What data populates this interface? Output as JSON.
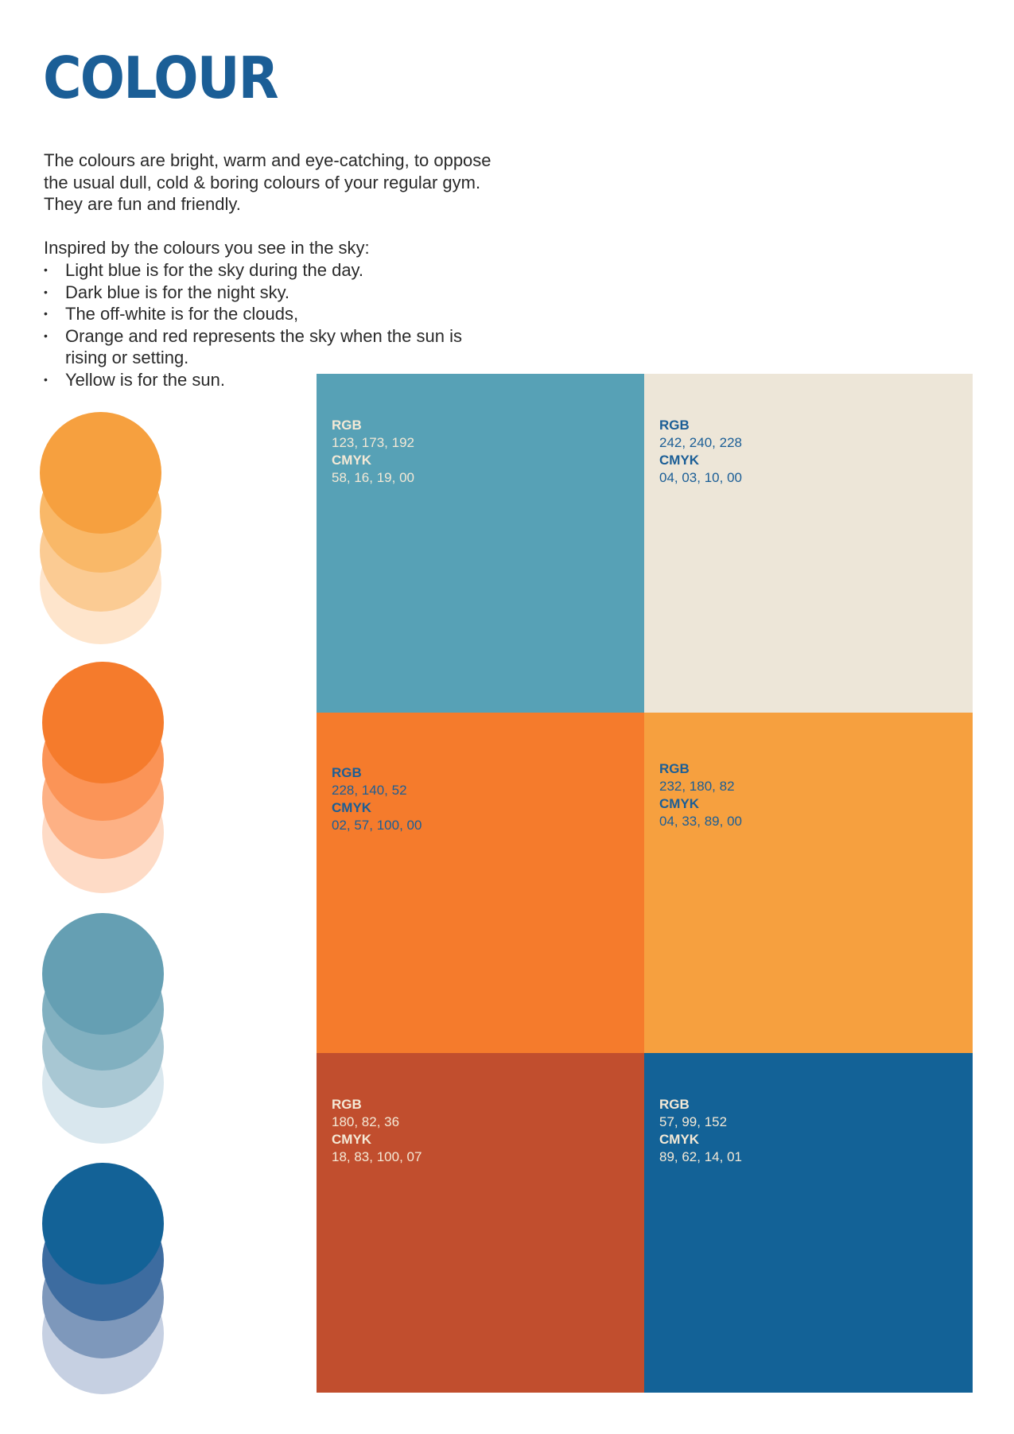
{
  "title": "COLOUR",
  "intro": "The colours are bright, warm and eye-catching, to oppose the usual dull, cold & boring colours of your regular gym. They are fun and friendly.",
  "inspired": "Inspired by the colours you see in the sky:",
  "bullets": [
    "Light blue is for the sky during the day.",
    "Dark blue is for the night sky.",
    "The off-white is for the clouds,",
    "Orange and red represents the sky when the sun is rising or setting.",
    "Yellow is for the sun."
  ],
  "colors": {
    "title": "#1B5E96",
    "light_blue": "#57A1B6",
    "off_white": "#EDE6D8",
    "orange": "#F57B2C",
    "yellow": "#F6A03F",
    "red": "#C14E2E",
    "dark_blue": "#136297",
    "label_blue": "#1B5E96",
    "label_light": "#F4E9D6"
  },
  "tint_groups": [
    {
      "name": "yellow",
      "shades": [
        "#FEE5CC",
        "#FBCB93",
        "#F9B868",
        "#F6A03F"
      ]
    },
    {
      "name": "orange",
      "shades": [
        "#FEDBC6",
        "#FDB185",
        "#FB9457",
        "#F57B2C"
      ]
    },
    {
      "name": "light-blue",
      "shades": [
        "#D9E7EE",
        "#A8C7D3",
        "#81B0C0",
        "#659FB3"
      ]
    },
    {
      "name": "dark-blue",
      "shades": [
        "#C6D0E2",
        "#7E98BB",
        "#3D6CA0",
        "#136297"
      ]
    }
  ],
  "swatches": [
    {
      "name": "light-blue",
      "rgb_label": "RGB",
      "rgb": "123, 173, 192",
      "cmyk_label": "CMYK",
      "cmyk": "58, 16, 19, 00"
    },
    {
      "name": "off-white",
      "rgb_label": "RGB",
      "rgb": "242, 240, 228",
      "cmyk_label": "CMYK",
      "cmyk": "04, 03, 10, 00"
    },
    {
      "name": "orange",
      "rgb_label": "RGB",
      "rgb": "228, 140, 52",
      "cmyk_label": "CMYK",
      "cmyk": "02, 57, 100, 00"
    },
    {
      "name": "yellow",
      "rgb_label": "RGB",
      "rgb": "232, 180, 82",
      "cmyk_label": "CMYK",
      "cmyk": "04, 33, 89, 00"
    },
    {
      "name": "red",
      "rgb_label": "RGB",
      "rgb": "180, 82, 36",
      "cmyk_label": "CMYK",
      "cmyk": "18, 83, 100, 07"
    },
    {
      "name": "dark-blue",
      "rgb_label": "RGB",
      "rgb": "57, 99, 152",
      "cmyk_label": "CMYK",
      "cmyk": "89, 62, 14, 01"
    }
  ]
}
